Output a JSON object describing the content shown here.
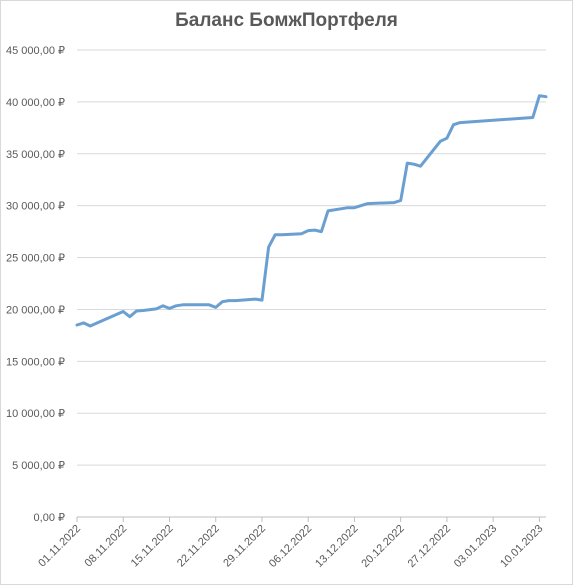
{
  "chart_data": {
    "type": "line",
    "title": "Баланс БомжПортфеля",
    "xlabel": "",
    "ylabel": "",
    "ylim": [
      0,
      45000
    ],
    "y_ticks": [
      0,
      5000,
      10000,
      15000,
      20000,
      25000,
      30000,
      35000,
      40000,
      45000
    ],
    "y_tick_labels": [
      "0,00 ₽",
      "5 000,00 ₽",
      "10 000,00 ₽",
      "15 000,00 ₽",
      "20 000,00 ₽",
      "25 000,00 ₽",
      "30 000,00 ₽",
      "35 000,00 ₽",
      "40 000,00 ₽",
      "45 000,00 ₽"
    ],
    "xlim": [
      "2022-11-01",
      "2023-01-11"
    ],
    "x_ticks": [
      "2022-11-01",
      "2022-11-08",
      "2022-11-15",
      "2022-11-22",
      "2022-11-29",
      "2022-12-06",
      "2022-12-13",
      "2022-12-20",
      "2022-12-27",
      "2023-01-03",
      "2023-01-10"
    ],
    "x_tick_labels": [
      "01.11.2022",
      "08.11.2022",
      "15.11.2022",
      "22.11.2022",
      "29.11.2022",
      "06.12.2022",
      "13.12.2022",
      "20.12.2022",
      "27.12.2022",
      "03.01.2023",
      "10.01.2023"
    ],
    "grid": "horizontal",
    "legend": "none",
    "line_color": "#6a9fd1",
    "series": [
      {
        "x": [
          "2022-11-01",
          "2022-11-02",
          "2022-11-03",
          "2022-11-08",
          "2022-11-09",
          "2022-11-10",
          "2022-11-11",
          "2022-11-13",
          "2022-11-14",
          "2022-11-15",
          "2022-11-16",
          "2022-11-17",
          "2022-11-18",
          "2022-11-21",
          "2022-11-22",
          "2022-11-23",
          "2022-11-24",
          "2022-11-25",
          "2022-11-28",
          "2022-11-29",
          "2022-11-30",
          "2022-12-01",
          "2022-12-02",
          "2022-12-05",
          "2022-12-06",
          "2022-12-07",
          "2022-12-08",
          "2022-12-09",
          "2022-12-12",
          "2022-12-13",
          "2022-12-15",
          "2022-12-19",
          "2022-12-20",
          "2022-12-21",
          "2022-12-22",
          "2022-12-23",
          "2022-12-26",
          "2022-12-27",
          "2022-12-28",
          "2022-12-29",
          "2023-01-09",
          "2023-01-10",
          "2023-01-11"
        ],
        "y": [
          18500,
          18700,
          18400,
          19800,
          19300,
          19850,
          19900,
          20050,
          20350,
          20100,
          20350,
          20450,
          20450,
          20450,
          20200,
          20750,
          20850,
          20850,
          21000,
          20900,
          26000,
          27200,
          27200,
          27300,
          27600,
          27650,
          27500,
          29500,
          29800,
          29800,
          30200,
          30300,
          30500,
          34100,
          34000,
          33800,
          36200,
          36500,
          37800,
          38000,
          38500,
          40600,
          40500
        ]
      }
    ]
  }
}
